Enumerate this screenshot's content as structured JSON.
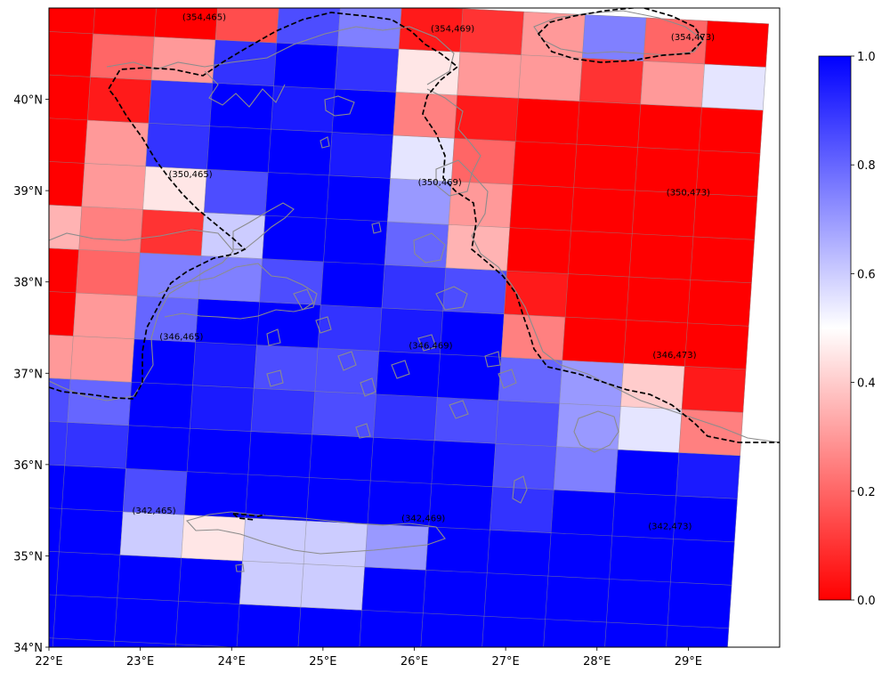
{
  "map": {
    "x_ticks": [
      "22°E",
      "23°E",
      "24°E",
      "25°E",
      "26°E",
      "27°E",
      "28°E",
      "29°E"
    ],
    "y_ticks": [
      "34°N",
      "35°N",
      "36°N",
      "37°N",
      "38°N",
      "39°N",
      "40°N"
    ],
    "lon_range": [
      22,
      30
    ],
    "lat_range": [
      34,
      41
    ],
    "cell_labels": [
      {
        "text": "(354,465)",
        "lon": 23.7,
        "lat": 40.87
      },
      {
        "text": "(354,469)",
        "lon": 26.42,
        "lat": 40.74
      },
      {
        "text": "(354,473)",
        "lon": 29.05,
        "lat": 40.65
      },
      {
        "text": "(350,465)",
        "lon": 23.55,
        "lat": 39.15
      },
      {
        "text": "(350,469)",
        "lon": 26.28,
        "lat": 39.06
      },
      {
        "text": "(350,473)",
        "lon": 29.0,
        "lat": 38.95
      },
      {
        "text": "(346,465)",
        "lon": 23.45,
        "lat": 37.37
      },
      {
        "text": "(346,469)",
        "lon": 26.18,
        "lat": 37.27
      },
      {
        "text": "(346,473)",
        "lon": 28.85,
        "lat": 37.17
      },
      {
        "text": "(342,465)",
        "lon": 23.15,
        "lat": 35.46
      },
      {
        "text": "(342,469)",
        "lon": 26.1,
        "lat": 35.38
      },
      {
        "text": "(342,473)",
        "lon": 28.8,
        "lat": 35.29
      }
    ]
  },
  "colorbar": {
    "ticks": [
      "0.0",
      "0.2",
      "0.4",
      "0.6",
      "0.8",
      "1.0"
    ],
    "colors": {
      "low": "#ff0000",
      "mid": "#ffffff",
      "high": "#0000ff"
    }
  },
  "grid_values": [
    [
      1,
      1,
      1,
      1,
      1,
      1,
      1,
      1,
      1,
      1,
      1,
      1
    ],
    [
      1,
      1,
      1,
      1,
      1,
      1,
      1,
      1,
      1,
      1,
      1,
      1
    ],
    [
      1,
      1,
      1,
      1,
      0.6,
      0.6,
      1,
      1,
      1,
      1,
      1,
      1
    ],
    [
      1,
      1,
      0.6,
      0.45,
      0.6,
      0.6,
      0.7,
      1,
      1,
      1,
      1,
      1
    ],
    [
      1,
      1,
      0.85,
      1,
      1,
      1,
      1,
      1,
      0.9,
      1,
      1,
      1
    ],
    [
      0.9,
      0.9,
      1,
      1,
      1,
      1,
      1,
      1,
      0.85,
      0.75,
      1,
      0.95
    ],
    [
      0.85,
      0.8,
      1,
      0.95,
      0.9,
      0.85,
      0.9,
      0.85,
      0.85,
      0.7,
      0.55,
      0.25
    ],
    [
      0.3,
      0.3,
      1,
      0.95,
      0.85,
      0.85,
      1,
      1,
      0.8,
      0.7,
      0.4,
      0.05
    ],
    [
      0,
      0.3,
      0.8,
      1,
      1,
      0.9,
      0.95,
      1,
      0.25,
      0,
      0,
      0
    ],
    [
      0,
      0.2,
      0.75,
      0.75,
      0.85,
      1,
      0.9,
      0.85,
      0.05,
      0,
      0,
      0
    ],
    [
      0.35,
      0.25,
      0.1,
      0.6,
      1,
      1,
      0.8,
      0.35,
      0,
      0,
      0,
      0
    ],
    [
      0,
      0.3,
      0.45,
      0.85,
      1,
      1,
      0.7,
      0.3,
      0,
      0,
      0,
      0
    ],
    [
      0,
      0.3,
      0.9,
      1,
      1,
      0.95,
      0.55,
      0.2,
      0,
      0,
      0,
      0
    ],
    [
      0,
      0.05,
      0.9,
      1,
      0.95,
      1,
      0.25,
      0.05,
      0,
      0,
      0,
      0
    ],
    [
      0,
      0.2,
      0.3,
      0.9,
      1,
      0.9,
      0.45,
      0.3,
      0.3,
      0.1,
      0.3,
      0.55
    ],
    [
      0,
      0,
      0,
      0.15,
      0.85,
      0.75,
      0.05,
      0.1,
      0.3,
      0.75,
      0.2,
      0
    ]
  ]
}
